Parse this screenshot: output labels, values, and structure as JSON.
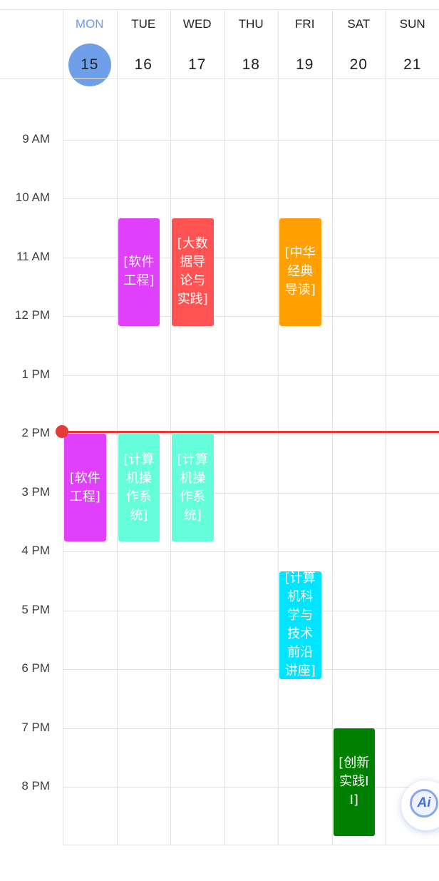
{
  "days": [
    {
      "dow": "MON",
      "date": "15",
      "today": true
    },
    {
      "dow": "TUE",
      "date": "16"
    },
    {
      "dow": "WED",
      "date": "17"
    },
    {
      "dow": "THU",
      "date": "18"
    },
    {
      "dow": "FRI",
      "date": "19"
    },
    {
      "dow": "SAT",
      "date": "20"
    },
    {
      "dow": "SUN",
      "date": "21"
    }
  ],
  "time_labels": [
    "9 AM",
    "10 AM",
    "11 AM",
    "12 PM",
    "1 PM",
    "2 PM",
    "3 PM",
    "4 PM",
    "5 PM",
    "6 PM",
    "7 PM",
    "8 PM"
  ],
  "events": [
    {
      "day": 1,
      "start": "10:20",
      "end": "12:10",
      "title": "[软件工程]",
      "color": "#e040fb"
    },
    {
      "day": 2,
      "start": "10:20",
      "end": "12:10",
      "title": "[大数据导论与实践]",
      "color": "#ff5252"
    },
    {
      "day": 4,
      "start": "10:20",
      "end": "12:10",
      "title": "[中华经典导读]",
      "color": "#ffa000"
    },
    {
      "day": 0,
      "start": "14:00",
      "end": "15:50",
      "title": "[软件工程]",
      "color": "#e040fb"
    },
    {
      "day": 1,
      "start": "14:00",
      "end": "15:50",
      "title": "[计算机操作系统]",
      "color": "#64ffda"
    },
    {
      "day": 2,
      "start": "14:00",
      "end": "15:50",
      "title": "[计算机操作系统]",
      "color": "#64ffda"
    },
    {
      "day": 4,
      "start": "16:20",
      "end": "18:10",
      "title": "[计算机科学与技术前沿讲座]",
      "color": "#00e5ff"
    },
    {
      "day": 5,
      "start": "19:00",
      "end": "20:50",
      "title": "[创新实践II]",
      "color": "#008000"
    }
  ],
  "now_indicator": {
    "time": "13:58",
    "color": "#e53935"
  },
  "ai_button": {
    "label": "Ai"
  }
}
